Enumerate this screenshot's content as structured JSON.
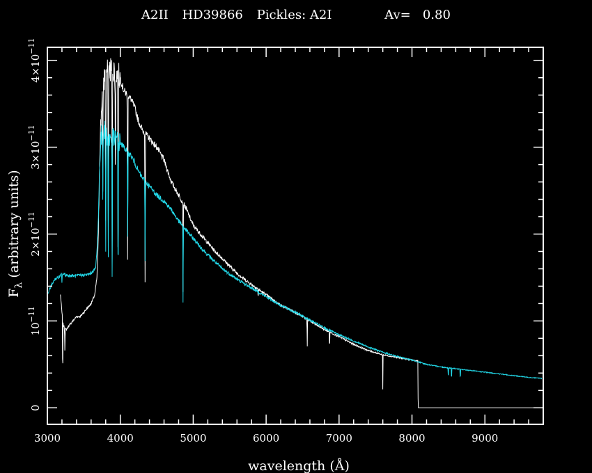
{
  "chart_data": {
    "type": "line",
    "title_parts": {
      "spectral_type": "A2II",
      "star": "HD39866",
      "template": "Pickles: A2I",
      "av": "Av=   0.80"
    },
    "xlabel": "wavelength (Å)",
    "ylabel": {
      "symbol": "F",
      "subscript": "λ",
      "rest": " (arbitrary units)"
    },
    "xlim": [
      3000,
      9800
    ],
    "ylim": [
      -1.9e-12,
      4.15e-11
    ],
    "x_ticks": [
      3000,
      4000,
      5000,
      6000,
      7000,
      8000,
      9000
    ],
    "x_tick_labels": [
      "3000",
      "4000",
      "5000",
      "6000",
      "7000",
      "8000",
      "9000"
    ],
    "y_ticks": [
      0,
      1e-11,
      2e-11,
      3e-11,
      4e-11
    ],
    "y_tick_labels": [
      {
        "coef": "0",
        "exp": ""
      },
      {
        "coef": "10",
        "exp": "−11"
      },
      {
        "coef": "2×10",
        "exp": "−11"
      },
      {
        "coef": "3×10",
        "exp": "−11"
      },
      {
        "coef": "4×10",
        "exp": "−11"
      }
    ],
    "grid": false,
    "colors": {
      "background": "#000000",
      "frame": "#ffffff",
      "observed": "#ffffff",
      "template": "#22d8e8"
    },
    "series": [
      {
        "key": "observed",
        "color": "#ffffff",
        "x": [
          3180,
          3200,
          3210,
          3220,
          3240,
          3260,
          3300,
          3350,
          3400,
          3450,
          3500,
          3550,
          3600,
          3650,
          3680,
          3700,
          3720,
          3750,
          3780,
          3800,
          3850,
          3900,
          3950,
          4000,
          4030,
          4050,
          4100,
          4150,
          4200,
          4250,
          4300,
          4350,
          4400,
          4450,
          4500,
          4600,
          4700,
          4800,
          4900,
          5000,
          5100,
          5200,
          5300,
          5400,
          5500,
          5600,
          5700,
          5800,
          5900,
          6000,
          6200,
          6400,
          6600,
          6800,
          7000,
          7200,
          7400,
          7600,
          7800,
          8000,
          8080,
          8085,
          8200,
          8400,
          8600,
          8800,
          9000,
          9200,
          9400,
          9600,
          9780
        ],
        "y": [
          1.3e-11,
          1.1e-11,
          1e-11,
          9.5e-12,
          9.2e-12,
          9e-12,
          9.5e-12,
          1e-11,
          1.05e-11,
          1.05e-11,
          1.1e-11,
          1.15e-11,
          1.2e-11,
          1.3e-11,
          1.5e-11,
          2e-11,
          3e-11,
          3.6e-11,
          3.8e-11,
          3.85e-11,
          3.9e-11,
          3.9e-11,
          3.85e-11,
          3.8e-11,
          3.7e-11,
          3.65e-11,
          3.6e-11,
          3.55e-11,
          3.45e-11,
          3.3e-11,
          3.2e-11,
          3.15e-11,
          3.1e-11,
          3.05e-11,
          3e-11,
          2.85e-11,
          2.6e-11,
          2.45e-11,
          2.3e-11,
          2.1e-11,
          2e-11,
          1.9e-11,
          1.8e-11,
          1.72e-11,
          1.63e-11,
          1.55e-11,
          1.48e-11,
          1.42e-11,
          1.36e-11,
          1.3e-11,
          1.18e-11,
          1.1e-11,
          1e-11,
          9e-12,
          8.2e-12,
          7.3e-12,
          6.6e-12,
          6.1e-12,
          5.8e-12,
          5.5e-12,
          5.4e-12,
          0.0,
          0.0,
          0.0,
          0.0,
          0.0,
          0.0,
          0.0,
          0.0,
          0.0,
          0.0
        ],
        "absorption_lines": [
          {
            "x": 3210,
            "depth": 7e-12
          },
          {
            "x": 3240,
            "depth": 2.5e-12
          },
          {
            "x": 3760,
            "depth": 1.3e-11
          },
          {
            "x": 3800,
            "depth": 1.8e-11
          },
          {
            "x": 3835,
            "depth": 2e-11
          },
          {
            "x": 3889,
            "depth": 2.6e-11
          },
          {
            "x": 3933,
            "depth": 1.4e-11
          },
          {
            "x": 3970,
            "depth": 2.8e-11
          },
          {
            "x": 4101,
            "depth": 2.3e-11
          },
          {
            "x": 4340,
            "depth": 1.7e-11
          },
          {
            "x": 4861,
            "depth": 1.4e-11
          },
          {
            "x": 5890,
            "depth": 1.5e-12
          },
          {
            "x": 6563,
            "depth": 4e-12
          },
          {
            "x": 6870,
            "depth": 2.5e-12
          },
          {
            "x": 7600,
            "depth": 4e-12
          }
        ]
      },
      {
        "key": "template",
        "color": "#22d8e8",
        "x": [
          3000,
          3050,
          3100,
          3150,
          3180,
          3200,
          3250,
          3300,
          3400,
          3500,
          3550,
          3600,
          3630,
          3660,
          3680,
          3700,
          3720,
          3750,
          3780,
          3800,
          3850,
          3900,
          3950,
          4000,
          4050,
          4100,
          4150,
          4200,
          4250,
          4300,
          4400,
          4500,
          4600,
          4700,
          4800,
          4900,
          5000,
          5100,
          5200,
          5400,
          5600,
          5800,
          6000,
          6200,
          6400,
          6600,
          6800,
          7000,
          7200,
          7400,
          7600,
          7800,
          8000,
          8200,
          8400,
          8600,
          8800,
          9000,
          9200,
          9400,
          9600,
          9780
        ],
        "y": [
          1.3e-11,
          1.4e-11,
          1.48e-11,
          1.5e-11,
          1.52e-11,
          1.55e-11,
          1.53e-11,
          1.52e-11,
          1.52e-11,
          1.53e-11,
          1.53e-11,
          1.55e-11,
          1.58e-11,
          1.6e-11,
          1.8e-11,
          2.2e-11,
          2.9e-11,
          3.2e-11,
          3.2e-11,
          3.15e-11,
          3.1e-11,
          3.1e-11,
          3.08e-11,
          3.05e-11,
          3e-11,
          2.95e-11,
          2.9e-11,
          2.82e-11,
          2.72e-11,
          2.65e-11,
          2.55e-11,
          2.45e-11,
          2.38e-11,
          2.28e-11,
          2.15e-11,
          2.05e-11,
          1.95e-11,
          1.85e-11,
          1.76e-11,
          1.6e-11,
          1.48e-11,
          1.38e-11,
          1.28e-11,
          1.18e-11,
          1.1e-11,
          1.01e-11,
          9.2e-12,
          8.4e-12,
          7.7e-12,
          7e-12,
          6.4e-12,
          5.9e-12,
          5.5e-12,
          5e-12,
          4.7e-12,
          4.5e-12,
          4.3e-12,
          4.1e-12,
          3.9e-12,
          3.7e-12,
          3.5e-12,
          3.4e-12
        ],
        "absorption_lines": [
          {
            "x": 3200,
            "depth": 1.2e-12
          },
          {
            "x": 3760,
            "depth": 8e-12
          },
          {
            "x": 3800,
            "depth": 1.4e-11
          },
          {
            "x": 3835,
            "depth": 1.6e-11
          },
          {
            "x": 3889,
            "depth": 1.9e-11
          },
          {
            "x": 3970,
            "depth": 2e-11
          },
          {
            "x": 4101,
            "depth": 1.2e-11
          },
          {
            "x": 4340,
            "depth": 9e-12
          },
          {
            "x": 4861,
            "depth": 1.2e-11
          },
          {
            "x": 8498,
            "depth": 1.5e-12
          },
          {
            "x": 8542,
            "depth": 1.8e-12
          },
          {
            "x": 8662,
            "depth": 1.6e-12
          }
        ]
      }
    ]
  }
}
